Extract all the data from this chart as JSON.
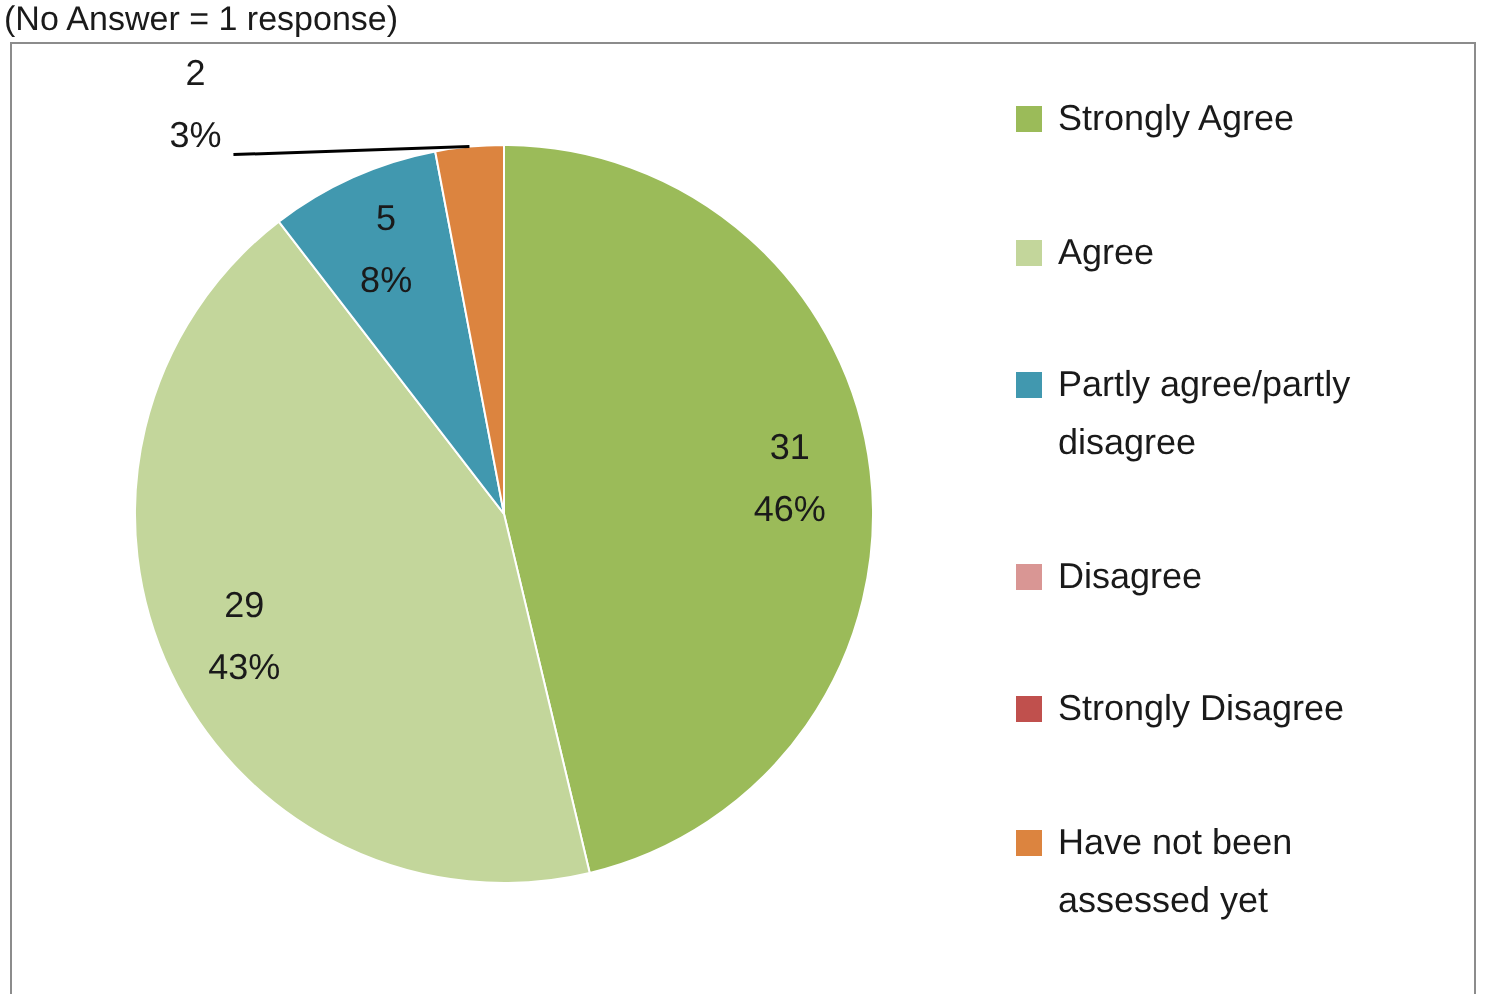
{
  "chart_data": {
    "type": "pie",
    "subtitle": "(No Answer = 1 response)",
    "categories": [
      "Strongly Agree",
      "Agree",
      "Partly agree/partly disagree",
      "Disagree",
      "Strongly Disagree",
      "Have not been assessed yet"
    ],
    "values": [
      31,
      29,
      5,
      0,
      0,
      2
    ],
    "colors": [
      "#9bbb59",
      "#c3d69b",
      "#4198af",
      "#d99694",
      "#c0504d",
      "#dc843f"
    ],
    "value_labels": [
      "31\n46%",
      "29\n43%",
      "5\n8%",
      null,
      null,
      "2\n3%"
    ],
    "legend": "right"
  }
}
